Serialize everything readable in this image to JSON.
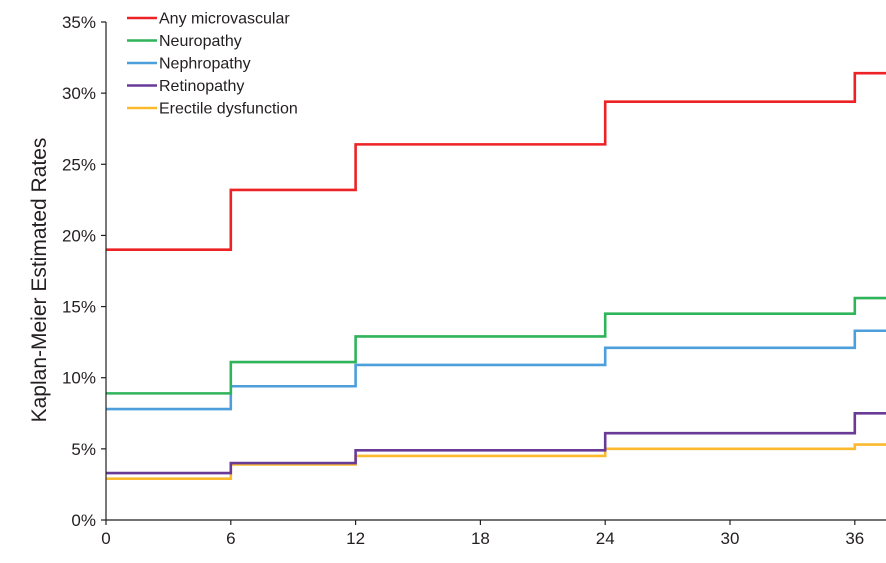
{
  "chart_data": {
    "type": "line",
    "step": true,
    "title": "",
    "xlabel": "",
    "ylabel": "Kaplan-Meier Estimated Rates",
    "xlim": [
      0,
      37.5
    ],
    "ylim": [
      0,
      35
    ],
    "x_ticks": [
      0,
      6,
      12,
      18,
      24,
      30,
      36
    ],
    "y_ticks": [
      {
        "value": 0,
        "label": "0%"
      },
      {
        "value": 5,
        "label": "5%"
      },
      {
        "value": 10,
        "label": "10%"
      },
      {
        "value": 15,
        "label": "15%"
      },
      {
        "value": 20,
        "label": "20%"
      },
      {
        "value": 25,
        "label": "25%"
      },
      {
        "value": 30,
        "label": "30%"
      },
      {
        "value": 35,
        "label": "35%"
      }
    ],
    "grid": false,
    "legend_position": "top-left",
    "series": [
      {
        "name": "Any microvascular",
        "color": "#ed2224",
        "x": [
          0,
          6,
          12,
          24,
          36,
          37.5
        ],
        "y": [
          19.0,
          23.2,
          26.4,
          29.4,
          31.4,
          31.4
        ]
      },
      {
        "name": "Neuropathy",
        "color": "#2fb45a",
        "x": [
          0,
          6,
          12,
          24,
          36,
          37.5
        ],
        "y": [
          8.9,
          11.1,
          12.9,
          14.5,
          15.6,
          15.6
        ]
      },
      {
        "name": "Nephropathy",
        "color": "#4d9fdc",
        "x": [
          0,
          6,
          12,
          24,
          36,
          37.5
        ],
        "y": [
          7.8,
          9.4,
          10.9,
          12.1,
          13.3,
          13.3
        ]
      },
      {
        "name": "Retinopathy",
        "color": "#6a3a97",
        "x": [
          0,
          6,
          12,
          24,
          36,
          37.5
        ],
        "y": [
          3.3,
          4.0,
          4.9,
          6.1,
          7.5,
          7.5
        ]
      },
      {
        "name": "Erectile dysfunction",
        "color": "#fbb92e",
        "x": [
          0,
          6,
          12,
          24,
          36,
          37.5
        ],
        "y": [
          2.9,
          3.9,
          4.5,
          5.0,
          5.3,
          5.3
        ]
      }
    ]
  }
}
